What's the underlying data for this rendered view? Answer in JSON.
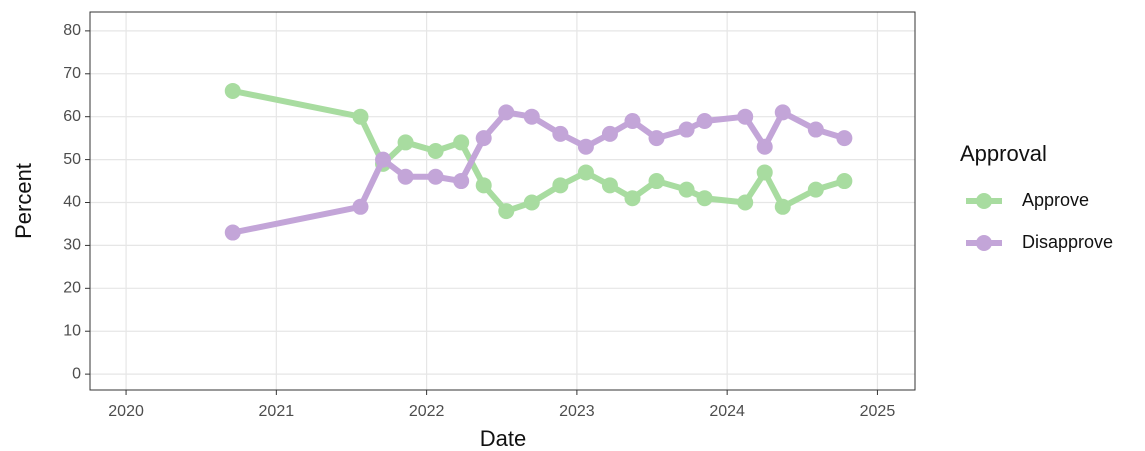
{
  "chart_data": {
    "type": "line",
    "x_label": "Date",
    "y_label": "Percent",
    "x": [
      2020.71,
      2021.56,
      2021.71,
      2021.86,
      2022.06,
      2022.23,
      2022.38,
      2022.53,
      2022.7,
      2022.89,
      2023.06,
      2023.22,
      2023.37,
      2023.53,
      2023.73,
      2023.85,
      2024.12,
      2024.25,
      2024.37,
      2024.59,
      2024.78
    ],
    "series": [
      {
        "name": "Approve",
        "color": "#a8dca0",
        "values": [
          66,
          60,
          49,
          54,
          52,
          54,
          44,
          38,
          40,
          44,
          47,
          44,
          41,
          45,
          43,
          41,
          40,
          47,
          39,
          43,
          45
        ]
      },
      {
        "name": "Disapprove",
        "color": "#c3a5d8",
        "values": [
          33,
          39,
          50,
          46,
          46,
          45,
          55,
          61,
          60,
          56,
          53,
          56,
          59,
          55,
          57,
          59,
          60,
          53,
          61,
          57,
          55
        ]
      }
    ],
    "legend_title": "Approval",
    "legend": "right",
    "xlim": [
      2019.76,
      2025.25
    ],
    "xticks": [
      2020,
      2021,
      2022,
      2023,
      2024,
      2025
    ],
    "ylim": [
      -3.7,
      84.4
    ],
    "yticks": [
      0,
      10,
      20,
      30,
      40,
      50,
      60,
      70,
      80
    ],
    "grid": true
  }
}
